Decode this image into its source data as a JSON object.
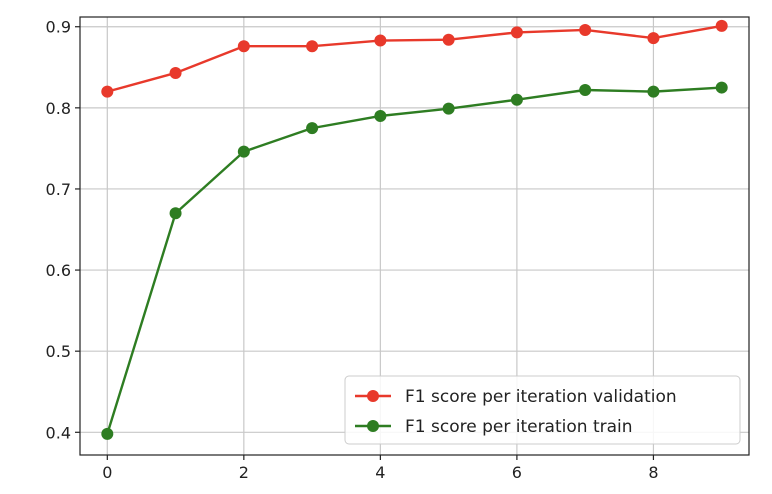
{
  "chart_data": {
    "type": "line",
    "title": "",
    "xlabel": "",
    "ylabel": "",
    "x": [
      0,
      1,
      2,
      3,
      4,
      5,
      6,
      7,
      8,
      9
    ],
    "series": [
      {
        "name": "F1 score per iteration validation",
        "color": "#e8392b",
        "values": [
          0.82,
          0.843,
          0.876,
          0.876,
          0.883,
          0.884,
          0.893,
          0.896,
          0.886,
          0.901
        ]
      },
      {
        "name": "F1 score per iteration train",
        "color": "#2e7d22",
        "values": [
          0.398,
          0.67,
          0.746,
          0.775,
          0.79,
          0.799,
          0.81,
          0.822,
          0.82,
          0.825
        ]
      }
    ],
    "xlim": [
      -0.4,
      9.4
    ],
    "ylim": [
      0.372,
      0.912
    ],
    "xticks": [
      0,
      2,
      4,
      6,
      8
    ],
    "xtick_labels": [
      "0",
      "2",
      "4",
      "6",
      "8"
    ],
    "yticks": [
      0.4,
      0.5,
      0.6,
      0.7,
      0.8,
      0.9
    ],
    "ytick_labels": [
      "0.4",
      "0.5",
      "0.6",
      "0.7",
      "0.8",
      "0.9"
    ],
    "grid": true,
    "legend_position": "lower-right"
  }
}
